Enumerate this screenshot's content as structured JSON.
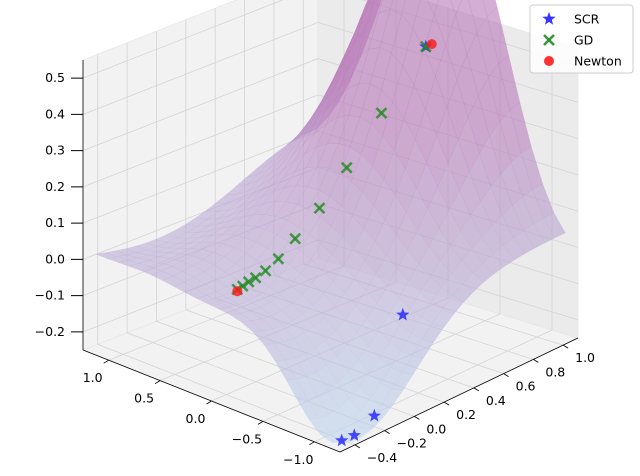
{
  "chart_data": {
    "type": "scatter",
    "title": "",
    "xlabel": "",
    "ylabel": "",
    "zlabel": "",
    "projection": "3d",
    "grid": true,
    "legend": "top-right",
    "axes": {
      "x": {
        "ticks": [
          -1.0,
          -0.5,
          0.0,
          0.5,
          1.0
        ],
        "tick_labels": [
          "−1.0",
          "−0.5",
          "0.0",
          "0.5",
          "1.0"
        ],
        "lim": [
          -1.25,
          1.25
        ]
      },
      "y": {
        "ticks": [
          -0.4,
          -0.2,
          0.0,
          0.2,
          0.4,
          0.6,
          0.8,
          1.0
        ],
        "tick_labels": [
          "−0.4",
          "−0.2",
          "0.0",
          "0.2",
          "0.4",
          "0.6",
          "0.8",
          "1.0"
        ],
        "lim": [
          -0.5,
          1.1
        ]
      },
      "z": {
        "ticks": [
          -0.2,
          -0.1,
          0.0,
          0.1,
          0.2,
          0.3,
          0.4,
          0.5
        ],
        "tick_labels": [
          "−0.2",
          "−0.1",
          "0.0",
          "0.1",
          "0.2",
          "0.3",
          "0.4",
          "0.5"
        ],
        "lim": [
          -0.25,
          0.55
        ]
      }
    },
    "surface": {
      "color_low": "#bcd3ec",
      "color_high": "#b778b8",
      "opacity": 0.6
    },
    "series": [
      {
        "name": "SCR",
        "marker": "star",
        "color": "#1f1fff",
        "points": [
          [
            0.0,
            0.95,
            0.47
          ],
          [
            -0.85,
            0.2,
            -0.05
          ],
          [
            -1.15,
            -0.2,
            -0.22
          ],
          [
            -1.1,
            -0.3,
            -0.26
          ],
          [
            -1.05,
            -0.35,
            -0.27
          ]
        ]
      },
      {
        "name": "GD",
        "marker": "x",
        "color": "#228b22",
        "points": [
          [
            0.0,
            0.95,
            0.47
          ],
          [
            0.0,
            0.65,
            0.34
          ],
          [
            0.05,
            0.45,
            0.22
          ],
          [
            0.1,
            0.3,
            0.13
          ],
          [
            0.12,
            0.15,
            0.07
          ],
          [
            0.14,
            0.05,
            0.03
          ],
          [
            0.15,
            -0.03,
            0.01
          ],
          [
            0.16,
            -0.09,
            0.0
          ],
          [
            0.17,
            -0.13,
            -0.005
          ],
          [
            0.17,
            -0.17,
            -0.01
          ],
          [
            0.18,
            -0.2,
            -0.015
          ]
        ]
      },
      {
        "name": "Newton",
        "marker": "circle",
        "color": "#ff1a1a",
        "points": [
          [
            0.0,
            0.99,
            0.47
          ],
          [
            0.18,
            -0.2,
            -0.02
          ]
        ]
      }
    ]
  }
}
